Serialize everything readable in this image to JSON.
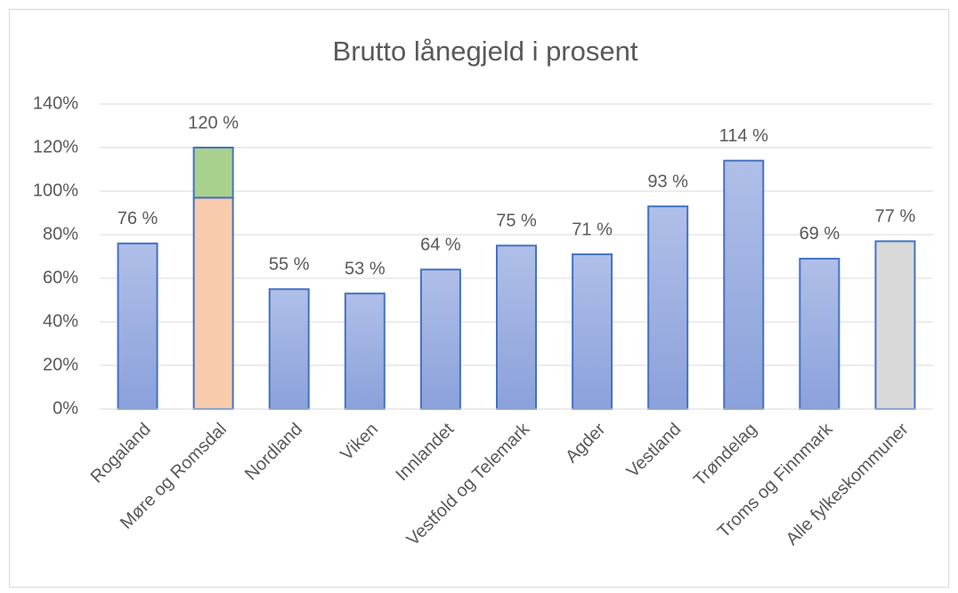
{
  "chart_data": {
    "type": "bar",
    "title": "Brutto lånegjeld i prosent",
    "categories": [
      "Rogaland",
      "Møre og Romsdal",
      "Nordland",
      "Viken",
      "Innlandet",
      "Vestfold og Telemark",
      "Agder",
      "Vestland",
      "Trøndelag",
      "Troms og Finnmark",
      "Alle fylkeskommuner"
    ],
    "series": [
      {
        "values": [
          76,
          97,
          55,
          53,
          64,
          75,
          71,
          93,
          114,
          69,
          77
        ],
        "colors": [
          "#9fb2e2",
          "#f8cbad",
          "#9fb2e2",
          "#9fb2e2",
          "#9fb2e2",
          "#9fb2e2",
          "#9fb2e2",
          "#9fb2e2",
          "#9fb2e2",
          "#9fb2e2",
          "#d9d9d9"
        ]
      },
      {
        "values": [
          null,
          23,
          null,
          null,
          null,
          null,
          null,
          null,
          null,
          null,
          null
        ],
        "color": "#a9d18e"
      }
    ],
    "value_labels": [
      "76 %",
      "120 %",
      "55 %",
      "53 %",
      "64 %",
      "75 %",
      "71 %",
      "93 %",
      "114 %",
      "69 %",
      "77 %"
    ],
    "ylim": [
      0,
      140
    ],
    "yticks": [
      {
        "value": 0,
        "label": "0%"
      },
      {
        "value": 20,
        "label": "20%"
      },
      {
        "value": 40,
        "label": "40%"
      },
      {
        "value": 60,
        "label": "60%"
      },
      {
        "value": 80,
        "label": "80%"
      },
      {
        "value": 100,
        "label": "100%"
      },
      {
        "value": 120,
        "label": "120%"
      },
      {
        "value": 140,
        "label": "140%"
      }
    ],
    "grid": true
  }
}
